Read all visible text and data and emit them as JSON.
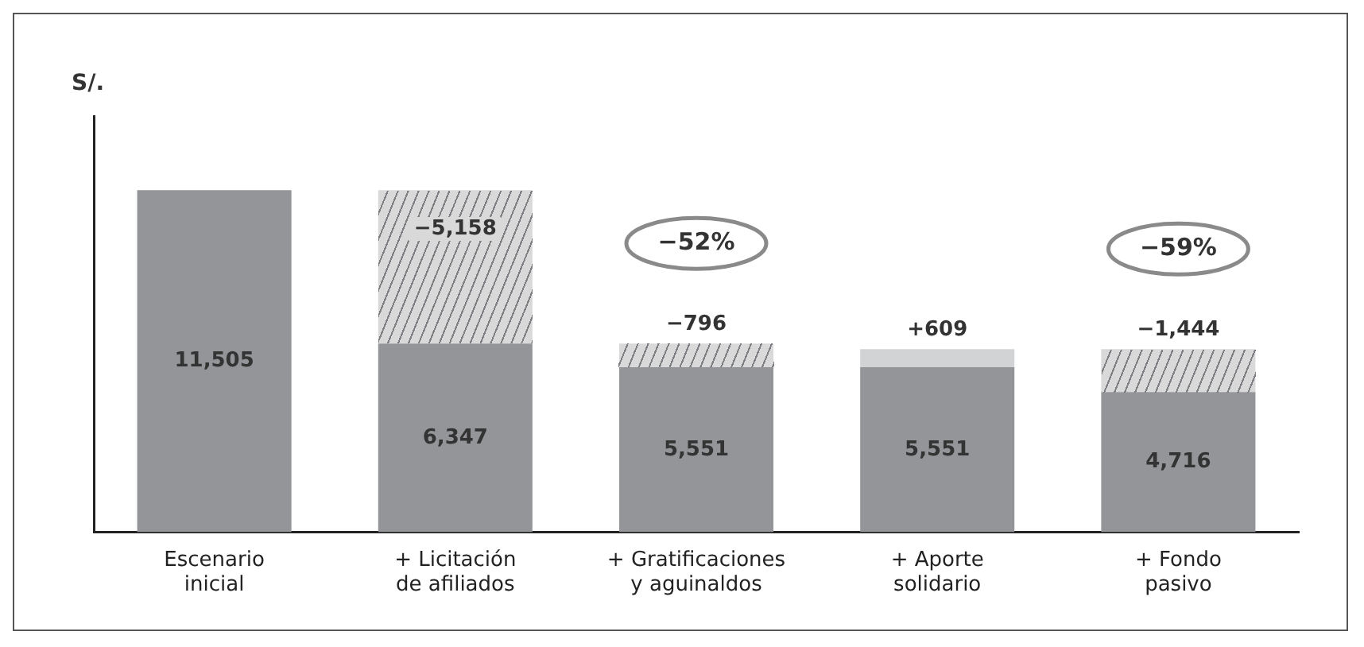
{
  "chart_data": {
    "type": "bar",
    "stacked": true,
    "ylabel": "S/.",
    "tick_labels": "x",
    "grid": false,
    "legend": false,
    "categories": [
      "Escenario inicial",
      "+ Licitación de afiliados",
      "+ Gratificaciones y aguinaldos",
      "+ Aporte solidario",
      "+ Fondo pasivo"
    ],
    "series": [
      {
        "color": "#939598",
        "values": [
          11505,
          6347,
          5551,
          5551,
          4716
        ],
        "value_labels": [
          "11,505",
          "6,347",
          "5,551",
          "5,551",
          "4,716"
        ]
      },
      {
        "color": "#d9d9d9",
        "values": [
          null,
          5158,
          796,
          null,
          1444
        ]
      },
      {
        "color": "#d1d3d4",
        "values": [
          null,
          null,
          null,
          609,
          null
        ],
        "value_labels": [
          null,
          null,
          null,
          "+609",
          null
        ]
      }
    ],
    "annotations": [
      {
        "text": "−5,158",
        "x": "+ Licitación de afiliados",
        "y": 11505
      },
      {
        "text": "−796",
        "x": "+ Gratificaciones y aguinaldos",
        "y": 6347
      },
      {
        "text": "−1,444",
        "x": "+ Fondo pasivo",
        "y": 6160
      },
      "−52%",
      "−59%"
    ]
  }
}
